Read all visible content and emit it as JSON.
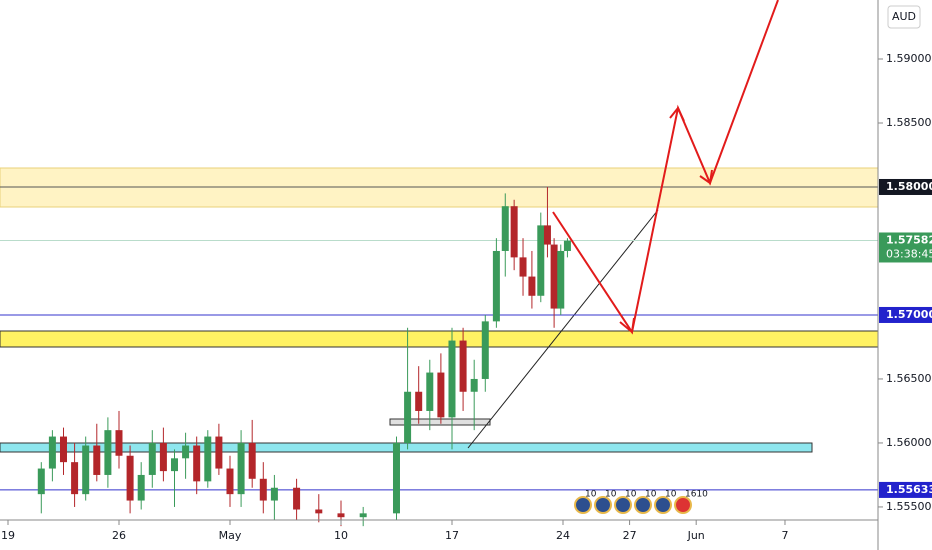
{
  "chart_data": {
    "type": "candlestick",
    "currency": "AUD",
    "x": [
      1.5,
      2.0,
      2.5,
      3.0,
      3.5,
      4.0,
      4.5,
      5.0,
      5.5,
      6.0,
      6.5,
      7.0,
      7.5,
      8.0,
      8.5,
      9.0,
      9.5,
      10.0,
      10.5,
      11.0,
      11.5,
      12.0,
      13.0,
      14.0,
      15.0,
      16.0,
      17.5,
      18.0,
      18.5,
      19.0,
      19.5,
      20.0,
      20.5,
      21.0,
      21.5,
      22.0,
      22.4,
      22.8,
      23.2,
      23.6,
      24.0,
      24.3,
      24.6,
      24.9,
      25.2
    ],
    "open": [
      1.556,
      1.558,
      1.5605,
      1.5585,
      1.556,
      1.5598,
      1.5575,
      1.561,
      1.559,
      1.5555,
      1.5575,
      1.56,
      1.5578,
      1.5588,
      1.5598,
      1.557,
      1.5605,
      1.558,
      1.556,
      1.56,
      1.5572,
      1.5555,
      1.5565,
      1.5548,
      1.5545,
      1.5542,
      1.5545,
      1.56,
      1.564,
      1.5625,
      1.5655,
      1.562,
      1.568,
      1.564,
      1.565,
      1.5695,
      1.575,
      1.5785,
      1.5745,
      1.573,
      1.5715,
      1.577,
      1.5755,
      1.5705,
      1.575
    ],
    "high": [
      1.5585,
      1.561,
      1.5612,
      1.56,
      1.5605,
      1.5615,
      1.562,
      1.5625,
      1.5598,
      1.5585,
      1.561,
      1.5612,
      1.5595,
      1.5608,
      1.5605,
      1.561,
      1.5615,
      1.559,
      1.561,
      1.5618,
      1.5585,
      1.5575,
      1.5572,
      1.556,
      1.5555,
      1.555,
      1.5605,
      1.569,
      1.566,
      1.5665,
      1.567,
      1.569,
      1.569,
      1.5665,
      1.57,
      1.576,
      1.5795,
      1.579,
      1.576,
      1.575,
      1.578,
      1.58,
      1.576,
      1.5755,
      1.576
    ],
    "low": [
      1.5545,
      1.557,
      1.5575,
      1.555,
      1.5555,
      1.557,
      1.5565,
      1.558,
      1.5545,
      1.5548,
      1.5565,
      1.557,
      1.555,
      1.5572,
      1.556,
      1.5565,
      1.5575,
      1.555,
      1.555,
      1.5565,
      1.5545,
      1.554,
      1.554,
      1.5538,
      1.5535,
      1.5535,
      1.554,
      1.5595,
      1.5615,
      1.561,
      1.5615,
      1.5595,
      1.5625,
      1.561,
      1.564,
      1.569,
      1.573,
      1.5735,
      1.5715,
      1.5705,
      1.571,
      1.5745,
      1.569,
      1.57,
      1.5745
    ],
    "close": [
      1.558,
      1.5605,
      1.5585,
      1.556,
      1.5598,
      1.5575,
      1.561,
      1.559,
      1.5555,
      1.5575,
      1.56,
      1.5578,
      1.5588,
      1.5598,
      1.557,
      1.5605,
      1.558,
      1.556,
      1.56,
      1.5572,
      1.5555,
      1.5565,
      1.5548,
      1.5545,
      1.5542,
      1.5545,
      1.56,
      1.564,
      1.5625,
      1.5655,
      1.562,
      1.568,
      1.564,
      1.565,
      1.5695,
      1.575,
      1.5785,
      1.5745,
      1.573,
      1.5715,
      1.577,
      1.5755,
      1.5705,
      1.575,
      1.5758
    ],
    "up_color": "#3a9a5a",
    "down_color": "#b3262a",
    "xlim": [
      -0.36,
      39.19
    ],
    "ylim": [
      1.55398,
      1.59461
    ],
    "xticks": [
      {
        "value": 0,
        "label": "19"
      },
      {
        "value": 5,
        "label": "26"
      },
      {
        "value": 10,
        "label": "May"
      },
      {
        "value": 15,
        "label": "10"
      },
      {
        "value": 20,
        "label": "17"
      },
      {
        "value": 25,
        "label": "24"
      },
      {
        "value": 28,
        "label": "27"
      },
      {
        "value": 31,
        "label": "Jun"
      },
      {
        "value": 35,
        "label": "7"
      }
    ],
    "yticks": [
      {
        "value": 1.59,
        "label": "1.59000"
      },
      {
        "value": 1.585,
        "label": "1.58500"
      },
      {
        "value": 1.565,
        "label": "1.56500"
      },
      {
        "value": 1.56,
        "label": "1.56000"
      },
      {
        "value": 1.555,
        "label": "1.55500"
      }
    ],
    "price_labels": [
      {
        "value": 1.58,
        "label": "1.58000",
        "color": "#131722",
        "line": "#555555"
      },
      {
        "value": 1.57582,
        "label": "1.57582",
        "color": "#3a9a5a",
        "line": "#b9dccb",
        "countdown": "03:38:45"
      },
      {
        "value": 1.57,
        "label": "1.57000",
        "color": "#2222cc",
        "line": "#3333cc"
      },
      {
        "value": 1.55633,
        "label": "1.55633",
        "color": "#2222cc",
        "line": "#3333cc"
      }
    ],
    "event_labels": [
      "10",
      "10",
      "10",
      "10",
      "10",
      "1610"
    ]
  }
}
